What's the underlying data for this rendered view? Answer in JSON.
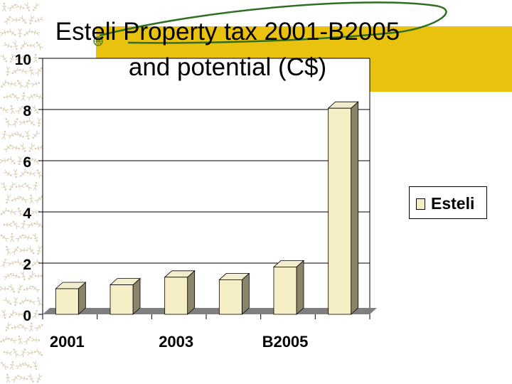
{
  "title_lines": [
    "Esteli Property tax 2001-B2005",
    "and potential (C$)"
  ],
  "colors": {
    "bar_face": "#f6eec4",
    "bar_top": "#f3edd0",
    "bar_side": "#8a8468",
    "floor": "#7f7f7f",
    "gridline": "#000000",
    "title_band": "#e8c20e",
    "swirl": "#2f6f22",
    "background": "#ffffff"
  },
  "chart_data": {
    "type": "bar",
    "title": "Esteli Property tax 2001-B2005 and potential (C$)",
    "categories": [
      "2001",
      "",
      "2003",
      "",
      "B2005",
      ""
    ],
    "series": [
      {
        "name": "Esteli",
        "values": [
          1.0,
          1.15,
          1.45,
          1.35,
          1.85,
          8.05
        ]
      }
    ],
    "ylim": [
      0,
      10
    ],
    "yticks": [
      0,
      2,
      4,
      6,
      8,
      10
    ],
    "xlabel": "",
    "ylabel": "",
    "grid": true,
    "legend_position": "right"
  }
}
